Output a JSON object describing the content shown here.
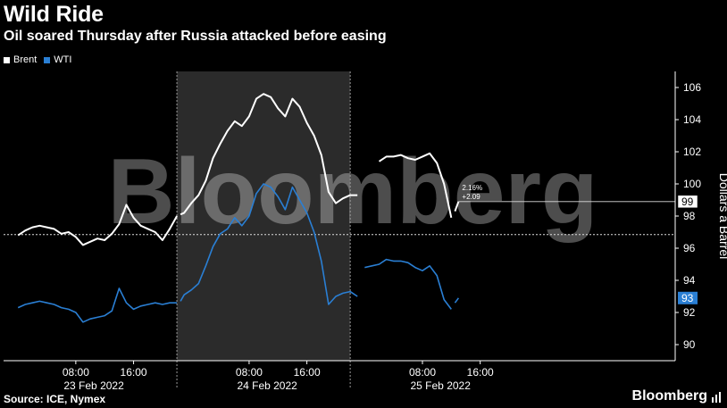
{
  "header": {
    "title": "Wild Ride",
    "subtitle": "Oil soared Thursday after Russia attacked before easing"
  },
  "footer": {
    "source": "Source: ICE, Nymex",
    "logo": "Bloomberg"
  },
  "watermark": "Bloomberg",
  "colors": {
    "brent": "#ffffff",
    "wti": "#2a7fd4",
    "shade": "#2b2b2b",
    "background": "#000000"
  },
  "chart_data": {
    "type": "line",
    "xlabel": "",
    "ylabel": "Dollars a Barrel",
    "ylim": [
      89,
      107
    ],
    "yticks": [
      90,
      92,
      94,
      96,
      98,
      100,
      102,
      104,
      106
    ],
    "x_unit": "hours from 23 Feb 2022 00:00",
    "xlim": [
      -2,
      91
    ],
    "xticks": [
      {
        "x": 8,
        "label": "08:00"
      },
      {
        "x": 16,
        "label": "16:00"
      },
      {
        "x": 32,
        "label": "08:00"
      },
      {
        "x": 40,
        "label": "16:00"
      },
      {
        "x": 56,
        "label": "08:00"
      },
      {
        "x": 64,
        "label": "16:00"
      }
    ],
    "day_labels": [
      {
        "x": 10.5,
        "label": "23 Feb 2022"
      },
      {
        "x": 34.5,
        "label": "24 Feb 2022"
      },
      {
        "x": 58.5,
        "label": "25 Feb 2022"
      }
    ],
    "day_separators": [
      22,
      46
    ],
    "highlight_range": [
      22,
      46
    ],
    "reference_line": 96.85,
    "legend": [
      {
        "name": "Brent",
        "color": "#ffffff"
      },
      {
        "name": "WTI",
        "color": "#2a7fd4"
      }
    ],
    "series": [
      {
        "name": "Brent",
        "color": "#ffffff",
        "last_label": "99",
        "annotation": [
          "2.16%",
          "+2.09"
        ],
        "segments": [
          {
            "x": [
              0,
              1,
              2,
              3,
              4,
              5,
              6,
              7,
              8,
              9,
              10,
              11,
              12,
              13,
              14,
              15,
              16,
              17,
              18,
              19,
              20,
              21,
              22
            ],
            "y": [
              96.8,
              97.1,
              97.3,
              97.4,
              97.3,
              97.2,
              96.9,
              97.0,
              96.7,
              96.2,
              96.4,
              96.6,
              96.5,
              96.9,
              97.5,
              98.7,
              97.9,
              97.4,
              97.2,
              97.0,
              96.5,
              97.2,
              98.0
            ]
          },
          {
            "x": [
              22.5,
              23,
              24,
              25,
              26,
              27,
              28,
              29,
              30,
              31,
              32,
              33,
              34,
              35,
              36,
              37,
              38,
              39,
              40,
              41,
              42,
              43,
              44,
              45,
              46,
              47
            ],
            "y": [
              98.1,
              98.2,
              98.8,
              99.3,
              100.2,
              101.6,
              102.5,
              103.3,
              103.9,
              103.6,
              104.2,
              105.3,
              105.6,
              105.4,
              104.7,
              104.2,
              105.3,
              104.8,
              103.8,
              103.0,
              101.8,
              99.5,
              98.8,
              99.1,
              99.3,
              99.3
            ]
          },
          {
            "x": [
              50,
              51,
              52,
              53,
              54,
              55,
              56,
              57,
              58,
              59,
              60
            ],
            "y": [
              101.4,
              101.7,
              101.7,
              101.8,
              101.6,
              101.5,
              101.7,
              101.9,
              101.3,
              100.0,
              97.9
            ]
          },
          {
            "x": [
              60.5,
              61
            ],
            "y": [
              98.3,
              98.9
            ]
          }
        ]
      },
      {
        "name": "WTI",
        "color": "#2a7fd4",
        "last_label": "93",
        "segments": [
          {
            "x": [
              0,
              1,
              2,
              3,
              4,
              5,
              6,
              7,
              8,
              9,
              10,
              11,
              12,
              13,
              14,
              15,
              16,
              17,
              18,
              19,
              20,
              21,
              22
            ],
            "y": [
              92.3,
              92.5,
              92.6,
              92.7,
              92.6,
              92.5,
              92.3,
              92.2,
              92.0,
              91.4,
              91.6,
              91.7,
              91.8,
              92.1,
              93.5,
              92.6,
              92.2,
              92.4,
              92.5,
              92.6,
              92.5,
              92.6,
              92.6
            ]
          },
          {
            "x": [
              22.5,
              23,
              24,
              25,
              26,
              27,
              28,
              29,
              30,
              31,
              32,
              33,
              34,
              35,
              36,
              37,
              38,
              39,
              40,
              41,
              42,
              43,
              44,
              45,
              46,
              47
            ],
            "y": [
              92.7,
              93.1,
              93.4,
              93.8,
              94.9,
              96.1,
              96.9,
              97.2,
              97.9,
              97.4,
              98.0,
              99.4,
              100.0,
              99.8,
              99.2,
              98.4,
              99.8,
              99.0,
              98.2,
              97.0,
              95.2,
              92.5,
              93.0,
              93.2,
              93.3,
              93.0
            ]
          },
          {
            "x": [
              48,
              49,
              50,
              51,
              52,
              53,
              54,
              55,
              56,
              57,
              58,
              59,
              60
            ],
            "y": [
              94.8,
              94.9,
              95.0,
              95.3,
              95.2,
              95.2,
              95.1,
              94.8,
              94.6,
              94.9,
              94.3,
              92.8,
              92.2
            ]
          },
          {
            "x": [
              60.5,
              61
            ],
            "y": [
              92.6,
              92.9
            ]
          }
        ]
      }
    ]
  }
}
